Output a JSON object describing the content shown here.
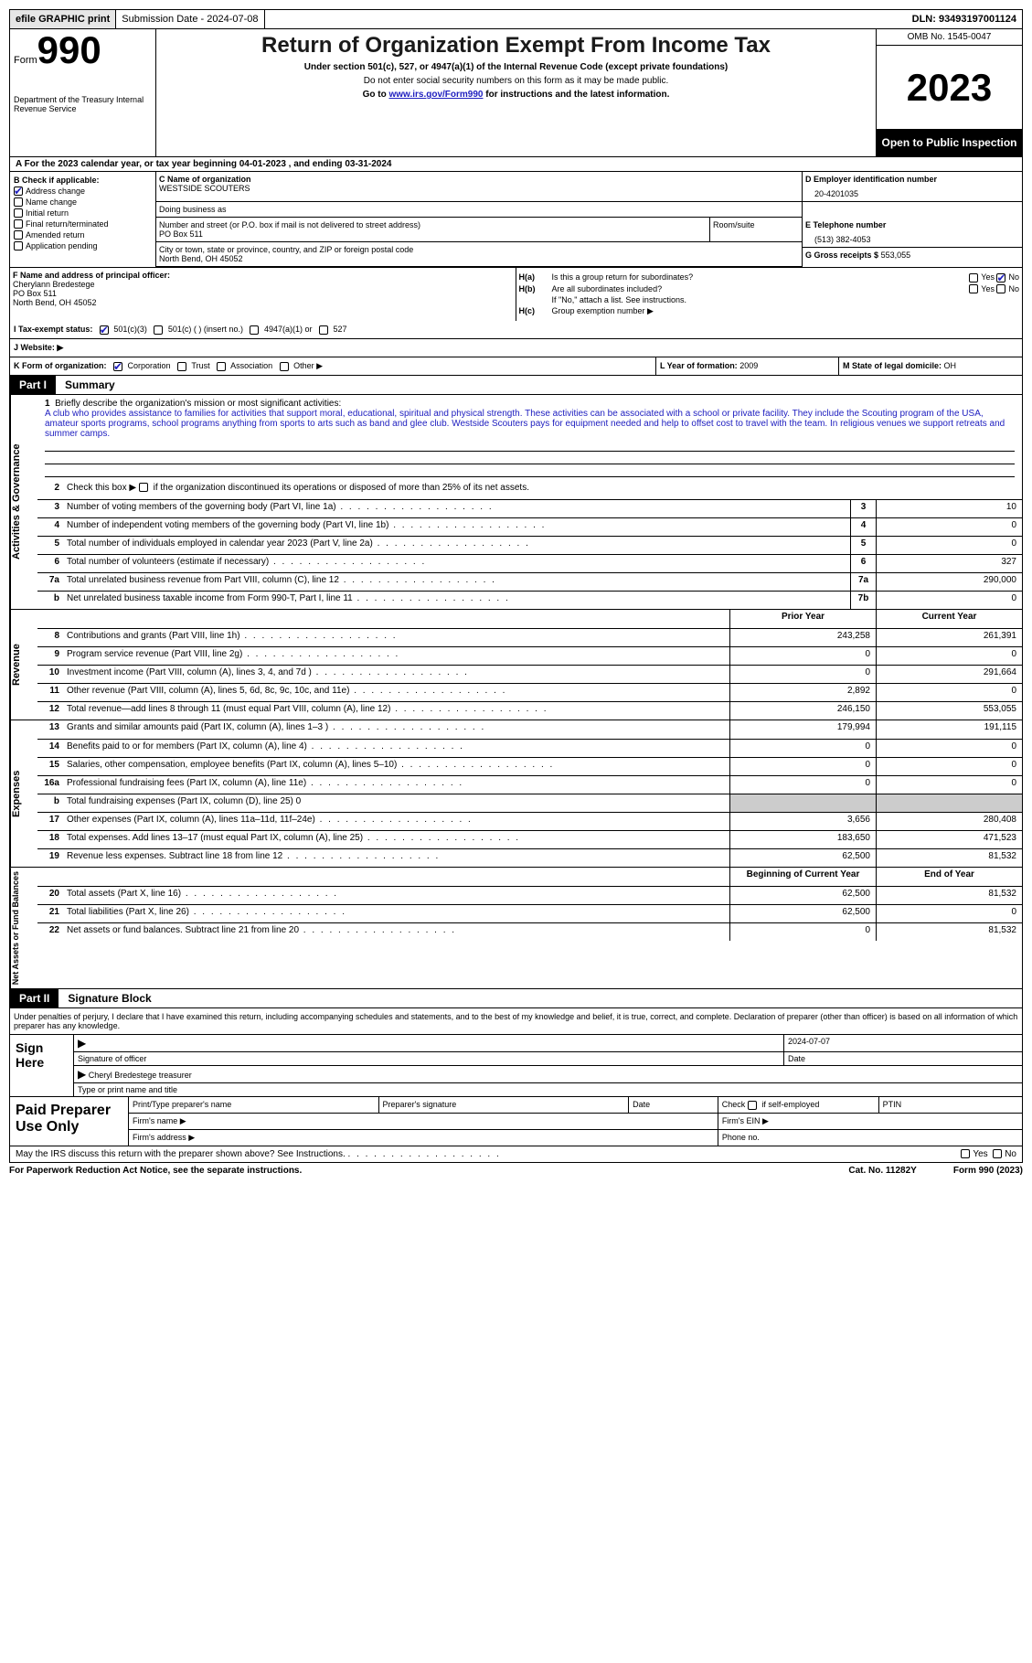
{
  "topbar": {
    "efile": "efile GRAPHIC print",
    "submission": "Submission Date - 2024-07-08",
    "dln": "DLN: 93493197001124"
  },
  "header": {
    "form_label": "Form",
    "form_number": "990",
    "dept": "Department of the Treasury Internal Revenue Service",
    "title": "Return of Organization Exempt From Income Tax",
    "subtitle": "Under section 501(c), 527, or 4947(a)(1) of the Internal Revenue Code (except private foundations)",
    "note": "Do not enter social security numbers on this form as it may be made public.",
    "goto_prefix": "Go to ",
    "goto_link": "www.irs.gov/Form990",
    "goto_suffix": " for instructions and the latest information.",
    "omb": "OMB No. 1545-0047",
    "year": "2023",
    "inspection": "Open to Public Inspection"
  },
  "row_a": "A For the 2023 calendar year, or tax year beginning 04-01-2023   , and ending 03-31-2024",
  "section_b": {
    "label": "B Check if applicable:",
    "items": [
      {
        "label": "Address change",
        "checked": true
      },
      {
        "label": "Name change",
        "checked": false
      },
      {
        "label": "Initial return",
        "checked": false
      },
      {
        "label": "Final return/terminated",
        "checked": false
      },
      {
        "label": "Amended return",
        "checked": false
      },
      {
        "label": "Application pending",
        "checked": false
      }
    ]
  },
  "section_c": {
    "name_label": "C Name of organization",
    "name": "WESTSIDE SCOUTERS",
    "dba_label": "Doing business as",
    "street_label": "Number and street (or P.O. box if mail is not delivered to street address)",
    "street": "PO Box 511",
    "room_label": "Room/suite",
    "city_label": "City or town, state or province, country, and ZIP or foreign postal code",
    "city": "North Bend, OH   45052"
  },
  "section_d": {
    "label": "D Employer identification number",
    "value": "20-4201035"
  },
  "section_e": {
    "label": "E Telephone number",
    "value": "(513) 382-4053"
  },
  "section_g": {
    "label": "G Gross receipts $",
    "value": "553,055"
  },
  "section_f": {
    "label": "F Name and address of principal officer:",
    "name": "Cherylann Bredestege",
    "addr1": "PO Box 511",
    "addr2": "North Bend, OH   45052"
  },
  "section_h": {
    "a_label": "H(a)",
    "a_text": "Is this a group return for subordinates?",
    "a_no": true,
    "b_label": "H(b)",
    "b_text": "Are all subordinates included?",
    "b_note": "If \"No,\" attach a list. See instructions.",
    "c_label": "H(c)",
    "c_text": "Group exemption number ▶"
  },
  "section_i": {
    "label": "I  Tax-exempt status:",
    "opts": [
      "501(c)(3)",
      "501(c) (  ) (insert no.)",
      "4947(a)(1) or",
      "527"
    ],
    "checked": 0
  },
  "section_j": {
    "label": "J  Website: ▶"
  },
  "section_k": {
    "label": "K Form of organization:",
    "opts": [
      "Corporation",
      "Trust",
      "Association",
      "Other ▶"
    ],
    "checked": 0
  },
  "section_l": {
    "label": "L Year of formation:",
    "value": "2009"
  },
  "section_m": {
    "label": "M State of legal domicile:",
    "value": "OH"
  },
  "part1": {
    "tag": "Part I",
    "title": "Summary"
  },
  "summary": {
    "q1": "Briefly describe the organization's mission or most significant activities:",
    "mission": "A club who provides assistance to families for activities that support moral, educational, spiritual and physical strength. These activities can be associated with a school or private facility. They include the Scouting program of the USA, amateur sports programs, school programs anything from sports to arts such as band and glee club. Westside Scouters pays for equipment needed and help to offset cost to travel with the team. In religious venues we support retreats and summer camps.",
    "q2": "Check this box ▶",
    "q2_suffix": " if the organization discontinued its operations or disposed of more than 25% of its net assets.",
    "rows_single": [
      {
        "num": "3",
        "desc": "Number of voting members of the governing body (Part VI, line 1a)",
        "box": "3",
        "val": "10"
      },
      {
        "num": "4",
        "desc": "Number of independent voting members of the governing body (Part VI, line 1b)",
        "box": "4",
        "val": "0"
      },
      {
        "num": "5",
        "desc": "Total number of individuals employed in calendar year 2023 (Part V, line 2a)",
        "box": "5",
        "val": "0"
      },
      {
        "num": "6",
        "desc": "Total number of volunteers (estimate if necessary)",
        "box": "6",
        "val": "327"
      },
      {
        "num": "7a",
        "desc": "Total unrelated business revenue from Part VIII, column (C), line 12",
        "box": "7a",
        "val": "290,000"
      },
      {
        "num": "b",
        "desc": "Net unrelated business taxable income from Form 990-T, Part I, line 11",
        "box": "7b",
        "val": "0"
      }
    ],
    "col_headers": {
      "prior": "Prior Year",
      "current": "Current Year"
    },
    "revenue_label": "Revenue",
    "revenue_rows": [
      {
        "num": "8",
        "desc": "Contributions and grants (Part VIII, line 1h)",
        "prior": "243,258",
        "current": "261,391"
      },
      {
        "num": "9",
        "desc": "Program service revenue (Part VIII, line 2g)",
        "prior": "0",
        "current": "0"
      },
      {
        "num": "10",
        "desc": "Investment income (Part VIII, column (A), lines 3, 4, and 7d )",
        "prior": "0",
        "current": "291,664"
      },
      {
        "num": "11",
        "desc": "Other revenue (Part VIII, column (A), lines 5, 6d, 8c, 9c, 10c, and 11e)",
        "prior": "2,892",
        "current": "0"
      },
      {
        "num": "12",
        "desc": "Total revenue—add lines 8 through 11 (must equal Part VIII, column (A), line 12)",
        "prior": "246,150",
        "current": "553,055"
      }
    ],
    "expenses_label": "Expenses",
    "expense_rows": [
      {
        "num": "13",
        "desc": "Grants and similar amounts paid (Part IX, column (A), lines 1–3 )",
        "prior": "179,994",
        "current": "191,115"
      },
      {
        "num": "14",
        "desc": "Benefits paid to or for members (Part IX, column (A), line 4)",
        "prior": "0",
        "current": "0"
      },
      {
        "num": "15",
        "desc": "Salaries, other compensation, employee benefits (Part IX, column (A), lines 5–10)",
        "prior": "0",
        "current": "0"
      },
      {
        "num": "16a",
        "desc": "Professional fundraising fees (Part IX, column (A), line 11e)",
        "prior": "0",
        "current": "0"
      },
      {
        "num": "b",
        "desc": "Total fundraising expenses (Part IX, column (D), line 25) 0",
        "prior": "",
        "current": "",
        "grey": true
      },
      {
        "num": "17",
        "desc": "Other expenses (Part IX, column (A), lines 11a–11d, 11f–24e)",
        "prior": "3,656",
        "current": "280,408"
      },
      {
        "num": "18",
        "desc": "Total expenses. Add lines 13–17 (must equal Part IX, column (A), line 25)",
        "prior": "183,650",
        "current": "471,523"
      },
      {
        "num": "19",
        "desc": "Revenue less expenses. Subtract line 18 from line 12",
        "prior": "62,500",
        "current": "81,532"
      }
    ],
    "net_label": "Net Assets or Fund Balances",
    "net_headers": {
      "begin": "Beginning of Current Year",
      "end": "End of Year"
    },
    "net_rows": [
      {
        "num": "20",
        "desc": "Total assets (Part X, line 16)",
        "begin": "62,500",
        "end": "81,532"
      },
      {
        "num": "21",
        "desc": "Total liabilities (Part X, line 26)",
        "begin": "62,500",
        "end": "0"
      },
      {
        "num": "22",
        "desc": "Net assets or fund balances. Subtract line 21 from line 20",
        "begin": "0",
        "end": "81,532"
      }
    ],
    "activities_label": "Activities & Governance"
  },
  "part2": {
    "tag": "Part II",
    "title": "Signature Block"
  },
  "signature": {
    "penalty": "Under penalties of perjury, I declare that I have examined this return, including accompanying schedules and statements, and to the best of my knowledge and belief, it is true, correct, and complete. Declaration of preparer (other than officer) is based on all information of which preparer has any knowledge.",
    "sign_here": "Sign Here",
    "date": "2024-07-07",
    "sig_of_officer": "Signature of officer",
    "officer_name": "Cheryl Bredestege treasurer",
    "type_name": "Type or print name and title",
    "date_label": "Date"
  },
  "paid": {
    "title": "Paid Preparer Use Only",
    "print_name": "Print/Type preparer's name",
    "prep_sig": "Preparer's signature",
    "date": "Date",
    "check_if": "Check",
    "self_emp": "if self-employed",
    "ptin": "PTIN",
    "firm_name": "Firm's name ▶",
    "firm_ein": "Firm's EIN ▶",
    "firm_addr": "Firm's address ▶",
    "phone": "Phone no."
  },
  "footer": {
    "discuss": "May the IRS discuss this return with the preparer shown above? See Instructions.",
    "yes": "Yes",
    "no": "No",
    "paperwork": "For Paperwork Reduction Act Notice, see the separate instructions.",
    "cat": "Cat. No. 11282Y",
    "form": "Form 990 (2023)"
  }
}
